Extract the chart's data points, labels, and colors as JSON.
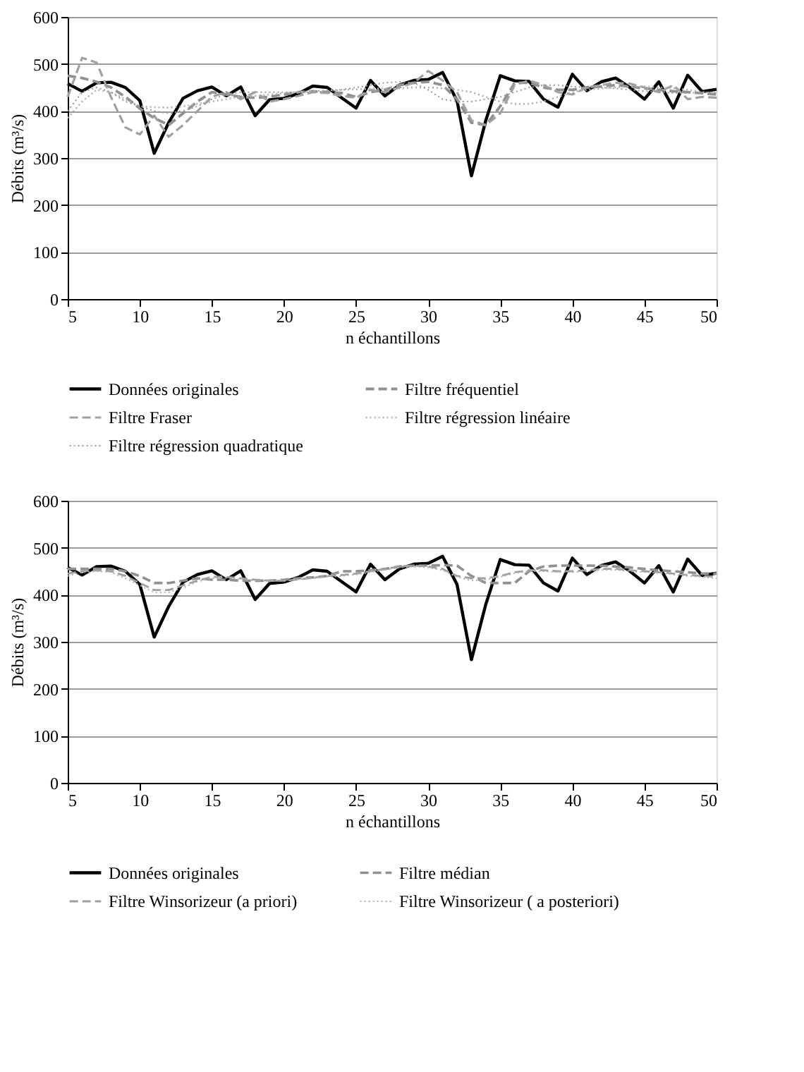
{
  "chart_data": [
    {
      "type": "line",
      "xlabel": "n échantillons",
      "ylabel": "Débits (m³/s)",
      "x": [
        5,
        6,
        7,
        8,
        9,
        10,
        11,
        12,
        13,
        14,
        15,
        16,
        17,
        18,
        19,
        20,
        21,
        22,
        23,
        24,
        25,
        26,
        27,
        28,
        29,
        30,
        31,
        32,
        33,
        34,
        35,
        36,
        37,
        38,
        39,
        40,
        41,
        42,
        43,
        44,
        45,
        46,
        47,
        48,
        49,
        50
      ],
      "xlim": [
        5,
        50
      ],
      "xticks": [
        5,
        10,
        15,
        20,
        25,
        30,
        35,
        40,
        45,
        50
      ],
      "ylim": [
        0,
        600
      ],
      "yticks": [
        0,
        100,
        200,
        300,
        400,
        500,
        600
      ],
      "grid": "y",
      "legend": "bottom",
      "marker": "none",
      "series": [
        {
          "name": "Données originales",
          "color": "#000000",
          "line_style": "solid",
          "values": [
            458,
            442,
            460,
            461,
            450,
            422,
            310,
            375,
            427,
            443,
            451,
            432,
            451,
            390,
            424,
            427,
            437,
            453,
            450,
            428,
            406,
            465,
            432,
            455,
            465,
            467,
            482,
            422,
            262,
            380,
            475,
            464,
            463,
            425,
            408,
            478,
            443,
            462,
            470,
            450,
            425,
            462,
            406,
            476,
            441,
            446
          ]
        },
        {
          "name": "Filtre fréquentiel",
          "color": "#909090",
          "line_style": "dashed",
          "values": [
            475,
            470,
            462,
            450,
            430,
            405,
            385,
            370,
            395,
            420,
            440,
            435,
            430,
            428,
            430,
            435,
            440,
            442,
            440,
            438,
            430,
            440,
            445,
            455,
            460,
            462,
            455,
            425,
            375,
            370,
            410,
            460,
            460,
            450,
            445,
            445,
            450,
            452,
            455,
            452,
            448,
            445,
            442,
            440,
            438,
            435
          ]
        },
        {
          "name": "Filtre Fraser",
          "color": "#a0a0a0",
          "line_style": "dashed",
          "values": [
            430,
            513,
            503,
            430,
            365,
            350,
            390,
            345,
            370,
            400,
            430,
            440,
            425,
            440,
            420,
            425,
            432,
            440,
            438,
            432,
            428,
            445,
            440,
            450,
            460,
            485,
            465,
            440,
            380,
            370,
            395,
            455,
            465,
            455,
            440,
            435,
            450,
            455,
            460,
            458,
            450,
            440,
            455,
            425,
            430,
            428
          ]
        },
        {
          "name": "Filtre régression linéaire",
          "color": "#b0b0b0",
          "line_style": "dotted",
          "values": [
            385,
            420,
            445,
            440,
            425,
            410,
            408,
            407,
            410,
            415,
            420,
            425,
            430,
            432,
            435,
            438,
            440,
            442,
            444,
            445,
            446,
            447,
            448,
            448,
            450,
            450,
            448,
            445,
            440,
            430,
            420,
            415,
            415,
            420,
            430,
            440,
            445,
            448,
            450,
            452,
            452,
            450,
            448,
            445,
            440,
            438
          ]
        },
        {
          "name": "Filtre régression quadratique",
          "color": "#989898",
          "line_style": "dotted",
          "values": [
            400,
            440,
            450,
            440,
            420,
            410,
            400,
            395,
            400,
            410,
            425,
            435,
            440,
            440,
            440,
            440,
            440,
            440,
            442,
            445,
            450,
            455,
            460,
            462,
            460,
            445,
            425,
            420,
            420,
            425,
            430,
            440,
            450,
            455,
            455,
            452,
            450,
            450,
            448,
            445,
            442,
            440,
            438,
            438,
            440,
            440
          ]
        }
      ]
    },
    {
      "type": "line",
      "xlabel": "n échantillons",
      "ylabel": "Débits (m³/s)",
      "x": [
        5,
        6,
        7,
        8,
        9,
        10,
        11,
        12,
        13,
        14,
        15,
        16,
        17,
        18,
        19,
        20,
        21,
        22,
        23,
        24,
        25,
        26,
        27,
        28,
        29,
        30,
        31,
        32,
        33,
        34,
        35,
        36,
        37,
        38,
        39,
        40,
        41,
        42,
        43,
        44,
        45,
        46,
        47,
        48,
        49,
        50
      ],
      "xlim": [
        5,
        50
      ],
      "xticks": [
        5,
        10,
        15,
        20,
        25,
        30,
        35,
        40,
        45,
        50
      ],
      "ylim": [
        0,
        600
      ],
      "yticks": [
        0,
        100,
        200,
        300,
        400,
        500,
        600
      ],
      "grid": "y",
      "legend": "bottom",
      "marker": "none",
      "series": [
        {
          "name": "Données originales",
          "color": "#000000",
          "line_style": "solid",
          "values": [
            458,
            442,
            460,
            461,
            450,
            422,
            310,
            375,
            427,
            443,
            451,
            432,
            451,
            390,
            424,
            427,
            437,
            453,
            450,
            428,
            406,
            465,
            432,
            455,
            465,
            467,
            482,
            422,
            262,
            380,
            475,
            464,
            463,
            425,
            408,
            478,
            443,
            462,
            470,
            450,
            425,
            462,
            406,
            476,
            441,
            446
          ]
        },
        {
          "name": "Filtre médian",
          "color": "#909090",
          "line_style": "dashed",
          "values": [
            455,
            455,
            455,
            455,
            450,
            440,
            425,
            425,
            430,
            435,
            432,
            432,
            430,
            430,
            430,
            432,
            435,
            437,
            440,
            450,
            450,
            452,
            455,
            460,
            462,
            462,
            463,
            462,
            440,
            425,
            425,
            425,
            450,
            460,
            462,
            462,
            462,
            462,
            460,
            458,
            455,
            452,
            450,
            448,
            445,
            445
          ]
        },
        {
          "name": "Filtre Winsorizeur (a priori)",
          "color": "#a0a0a0",
          "line_style": "dashed",
          "values": [
            445,
            450,
            452,
            450,
            440,
            425,
            410,
            410,
            420,
            430,
            438,
            438,
            435,
            432,
            430,
            430,
            433,
            436,
            440,
            442,
            445,
            450,
            455,
            460,
            462,
            460,
            455,
            440,
            435,
            435,
            440,
            448,
            452,
            452,
            450,
            450,
            452,
            455,
            455,
            452,
            450,
            448,
            445,
            442,
            440,
            438
          ]
        },
        {
          "name": "Filtre Winsorizeur ( a posteriori)",
          "color": "#b0b0b0",
          "line_style": "dotted",
          "values": [
            440,
            448,
            450,
            448,
            435,
            420,
            405,
            405,
            415,
            428,
            435,
            436,
            433,
            430,
            430,
            430,
            432,
            435,
            438,
            440,
            443,
            448,
            453,
            458,
            460,
            458,
            452,
            438,
            430,
            432,
            438,
            446,
            450,
            450,
            448,
            448,
            450,
            453,
            453,
            450,
            448,
            446,
            443,
            440,
            438,
            435
          ]
        }
      ]
    }
  ]
}
